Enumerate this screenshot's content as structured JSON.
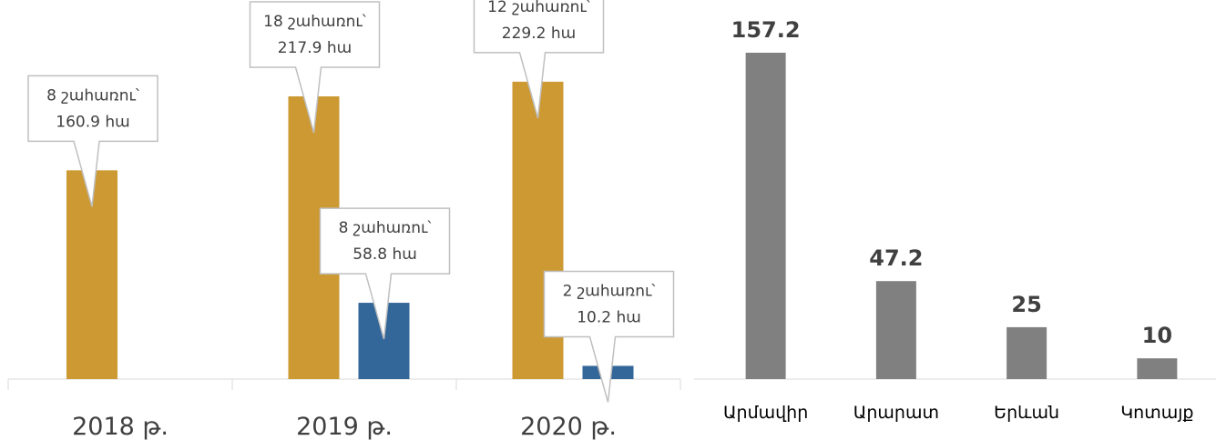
{
  "chart_data": [
    {
      "type": "bar",
      "categories": [
        "2018 թ.",
        "2019 թ.",
        "2020 թ."
      ],
      "series": [
        {
          "values": [
            160.9,
            217.9,
            229.2
          ],
          "labels": [
            [
              "8 շահառու՝",
              "160.9 հա"
            ],
            [
              "18 շահառու՝",
              "217.9 հա"
            ],
            [
              "12 շահառու՝",
              "229.2 հա"
            ]
          ]
        },
        {
          "values": [
            null,
            58.8,
            10.2
          ],
          "labels": [
            null,
            [
              "8 շահառու՝",
              "58.8 հա"
            ],
            [
              "2 շահառու՝",
              "10.2 հա"
            ]
          ]
        }
      ],
      "colors": [
        "#CC9933",
        "#336699"
      ],
      "ylim": [
        0,
        300
      ],
      "grid": false,
      "legend": "none"
    },
    {
      "type": "bar",
      "categories": [
        "Արմավիր",
        "Արարատ",
        "Երևան",
        "Կոտայք"
      ],
      "values": [
        157.2,
        47.2,
        25,
        10
      ],
      "data_labels": [
        "157.2",
        "47.2",
        "25",
        "10"
      ],
      "color": "#808080",
      "ylim": [
        0,
        157.2
      ],
      "grid": false,
      "legend": "none"
    }
  ]
}
